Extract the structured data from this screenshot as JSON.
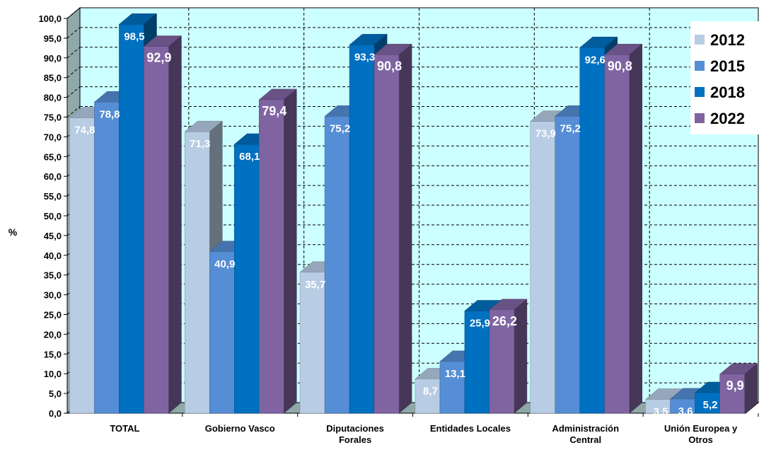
{
  "chart_data": {
    "type": "bar",
    "title": "",
    "xlabel": "",
    "ylabel": "%",
    "ylim": [
      0,
      100
    ],
    "ytick_step": 5,
    "ytick_labels": [
      "0,0",
      "5,0",
      "10,0",
      "15,0",
      "20,0",
      "25,0",
      "30,0",
      "35,0",
      "40,0",
      "45,0",
      "50,0",
      "55,0",
      "60,0",
      "65,0",
      "70,0",
      "75,0",
      "80,0",
      "85,0",
      "90,0",
      "95,0",
      "100,0"
    ],
    "grid": true,
    "legend_position": "top-right",
    "background_color": "#ccffff",
    "categories": [
      [
        "TOTAL"
      ],
      [
        "Gobierno Vasco"
      ],
      [
        "Diputaciones",
        "Forales"
      ],
      [
        "Entidades Locales"
      ],
      [
        "Administración",
        "Central"
      ],
      [
        "Unión Europea y",
        "Otros"
      ]
    ],
    "series": [
      {
        "name": "2012",
        "color": "#b8cce4",
        "values": [
          74.8,
          71.3,
          35.7,
          8.7,
          73.9,
          3.5
        ],
        "labels": [
          "74,8",
          "71,3",
          "35,7",
          "8,7",
          "73,9",
          "3,5"
        ]
      },
      {
        "name": "2015",
        "color": "#558ed5",
        "values": [
          78.8,
          40.9,
          75.2,
          13.1,
          75.2,
          3.6
        ],
        "labels": [
          "78,8",
          "40,9",
          "75,2",
          "13,1",
          "75,2",
          "3,6"
        ]
      },
      {
        "name": "2018",
        "color": "#0070c0",
        "values": [
          98.5,
          68.1,
          93.3,
          25.9,
          92.6,
          5.2
        ],
        "labels": [
          "98,5",
          "68,1",
          "93,3",
          "25,9",
          "92,6",
          "5,2"
        ]
      },
      {
        "name": "2022",
        "color": "#8064a2",
        "values": [
          92.9,
          79.4,
          90.8,
          26.2,
          90.8,
          9.9
        ],
        "labels": [
          "92,9",
          "79,4",
          "90,8",
          "26,2",
          "90,8",
          "9,9"
        ]
      }
    ]
  }
}
